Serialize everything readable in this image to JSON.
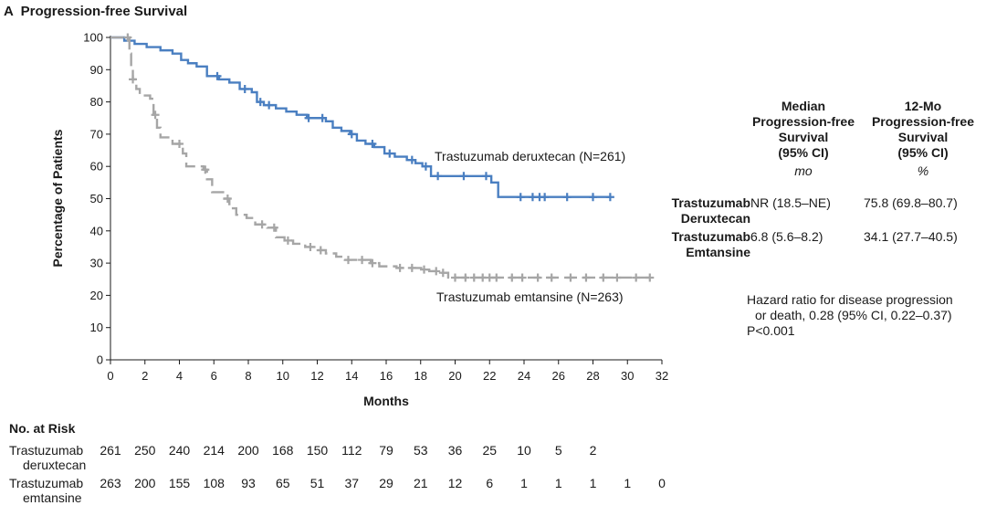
{
  "panel": {
    "letter": "A",
    "title": "Progression-free Survival"
  },
  "colors": {
    "deruxtecan": "#4a7fc1",
    "emtansine": "#a6a6a6",
    "axis": "#1a1a1a"
  },
  "chart_data": {
    "type": "line",
    "title": "Progression-free Survival",
    "xlabel": "Months",
    "ylabel": "Percentage of Patients",
    "xlim": [
      0,
      32
    ],
    "ylim": [
      0,
      100
    ],
    "xticks": [
      0,
      2,
      4,
      6,
      8,
      10,
      12,
      14,
      16,
      18,
      20,
      22,
      24,
      26,
      28,
      30,
      32
    ],
    "yticks": [
      0,
      10,
      20,
      30,
      40,
      50,
      60,
      70,
      80,
      90,
      100
    ],
    "grid": false,
    "step": true,
    "series": [
      {
        "name": "Trastuzumab deruxtecan (N=261)",
        "color": "#4a7fc1",
        "dashed": false,
        "x": [
          0,
          0.8,
          1.4,
          2.1,
          2.9,
          3.6,
          4.1,
          4.5,
          5.0,
          5.6,
          6.3,
          6.9,
          7.5,
          8.2,
          8.5,
          8.9,
          9.6,
          10.2,
          10.8,
          11.4,
          12.0,
          12.5,
          12.9,
          13.4,
          13.9,
          14.3,
          14.8,
          15.3,
          15.9,
          16.5,
          17.2,
          17.7,
          18.1,
          18.6,
          20.4,
          22.1,
          22.5,
          29.0
        ],
        "y": [
          100,
          99,
          98,
          97,
          96,
          95,
          93,
          92,
          91,
          88,
          87,
          86,
          84,
          83,
          80,
          79,
          78,
          77,
          76,
          75,
          75,
          74,
          72,
          71,
          70,
          68,
          67,
          66,
          64,
          63,
          62,
          61,
          60,
          57,
          57,
          55,
          50.5,
          50.5
        ],
        "censor_x": [
          6.2,
          7.8,
          8.7,
          9.2,
          11.5,
          12.3,
          14.0,
          15.2,
          16.2,
          17.5,
          18.3,
          19.0,
          20.5,
          21.8,
          23.8,
          24.5,
          24.9,
          25.2,
          26.5,
          28.0,
          29.0
        ]
      },
      {
        "name": "Trastuzumab emtansine (N=263)",
        "color": "#a6a6a6",
        "dashed": true,
        "x": [
          0,
          1.1,
          1.2,
          1.3,
          1.5,
          1.7,
          2.3,
          2.5,
          2.7,
          2.9,
          3.6,
          4.2,
          4.4,
          5.4,
          5.6,
          5.9,
          6.6,
          6.9,
          7.3,
          7.9,
          8.4,
          9.1,
          9.6,
          10.1,
          10.6,
          11.3,
          11.9,
          12.5,
          13.1,
          13.6,
          15.1,
          15.6,
          16.6,
          18.1,
          18.5,
          19.1,
          19.6,
          31.4
        ],
        "y": [
          100,
          95,
          90,
          87,
          84,
          82,
          81,
          76,
          72,
          69,
          67,
          64,
          60,
          59,
          56,
          52,
          50,
          47,
          45,
          44,
          42,
          41,
          38,
          37,
          36,
          35,
          34,
          33,
          32,
          31,
          30,
          29,
          28.5,
          28,
          27.5,
          27,
          25.5,
          25.5
        ],
        "censor_x": [
          1.0,
          1.3,
          2.6,
          4.0,
          5.5,
          6.8,
          8.8,
          9.5,
          10.3,
          11.6,
          12.2,
          13.8,
          14.6,
          15.2,
          16.8,
          17.5,
          18.2,
          18.9,
          19.3,
          20.0,
          20.6,
          21.1,
          21.6,
          22.0,
          22.4,
          23.3,
          23.9,
          24.8,
          25.6,
          26.7,
          27.6,
          28.6,
          29.4,
          30.5,
          31.3
        ]
      }
    ],
    "annotations": [
      "Trastuzumab deruxtecan (N=261)",
      "Trastuzumab emtansine (N=263)"
    ]
  },
  "stats_table": {
    "col1_header": [
      "Median",
      "Progression-free",
      "Survival",
      "(95% CI)"
    ],
    "col2_header": [
      "12-Mo",
      "Progression-free",
      "Survival",
      "(95% CI)"
    ],
    "col1_unit": "mo",
    "col2_unit": "%",
    "rows": [
      {
        "label": [
          "Trastuzumab",
          "Deruxtecan"
        ],
        "median": "NR (18.5–NE)",
        "twelve_mo": "75.8 (69.8–80.7)"
      },
      {
        "label": [
          "Trastuzumab",
          "Emtansine"
        ],
        "median": "6.8 (5.6–8.2)",
        "twelve_mo": "34.1 (27.7–40.5)"
      }
    ]
  },
  "hazard_note": {
    "line1": "Hazard ratio for disease progression",
    "line2": "or death, 0.28 (95% CI, 0.22–0.37)",
    "line3": "P<0.001"
  },
  "risk_table": {
    "title": "No. at Risk",
    "rows": [
      {
        "label": [
          "Trastuzumab",
          "deruxtecan"
        ],
        "values": [
          "261",
          "250",
          "240",
          "214",
          "200",
          "168",
          "150",
          "112",
          "79",
          "53",
          "36",
          "25",
          "10",
          "5",
          "2"
        ]
      },
      {
        "label": [
          "Trastuzumab",
          "emtansine"
        ],
        "values": [
          "263",
          "200",
          "155",
          "108",
          "93",
          "65",
          "51",
          "37",
          "29",
          "21",
          "12",
          "6",
          "1",
          "1",
          "1",
          "1",
          "0"
        ]
      }
    ]
  }
}
